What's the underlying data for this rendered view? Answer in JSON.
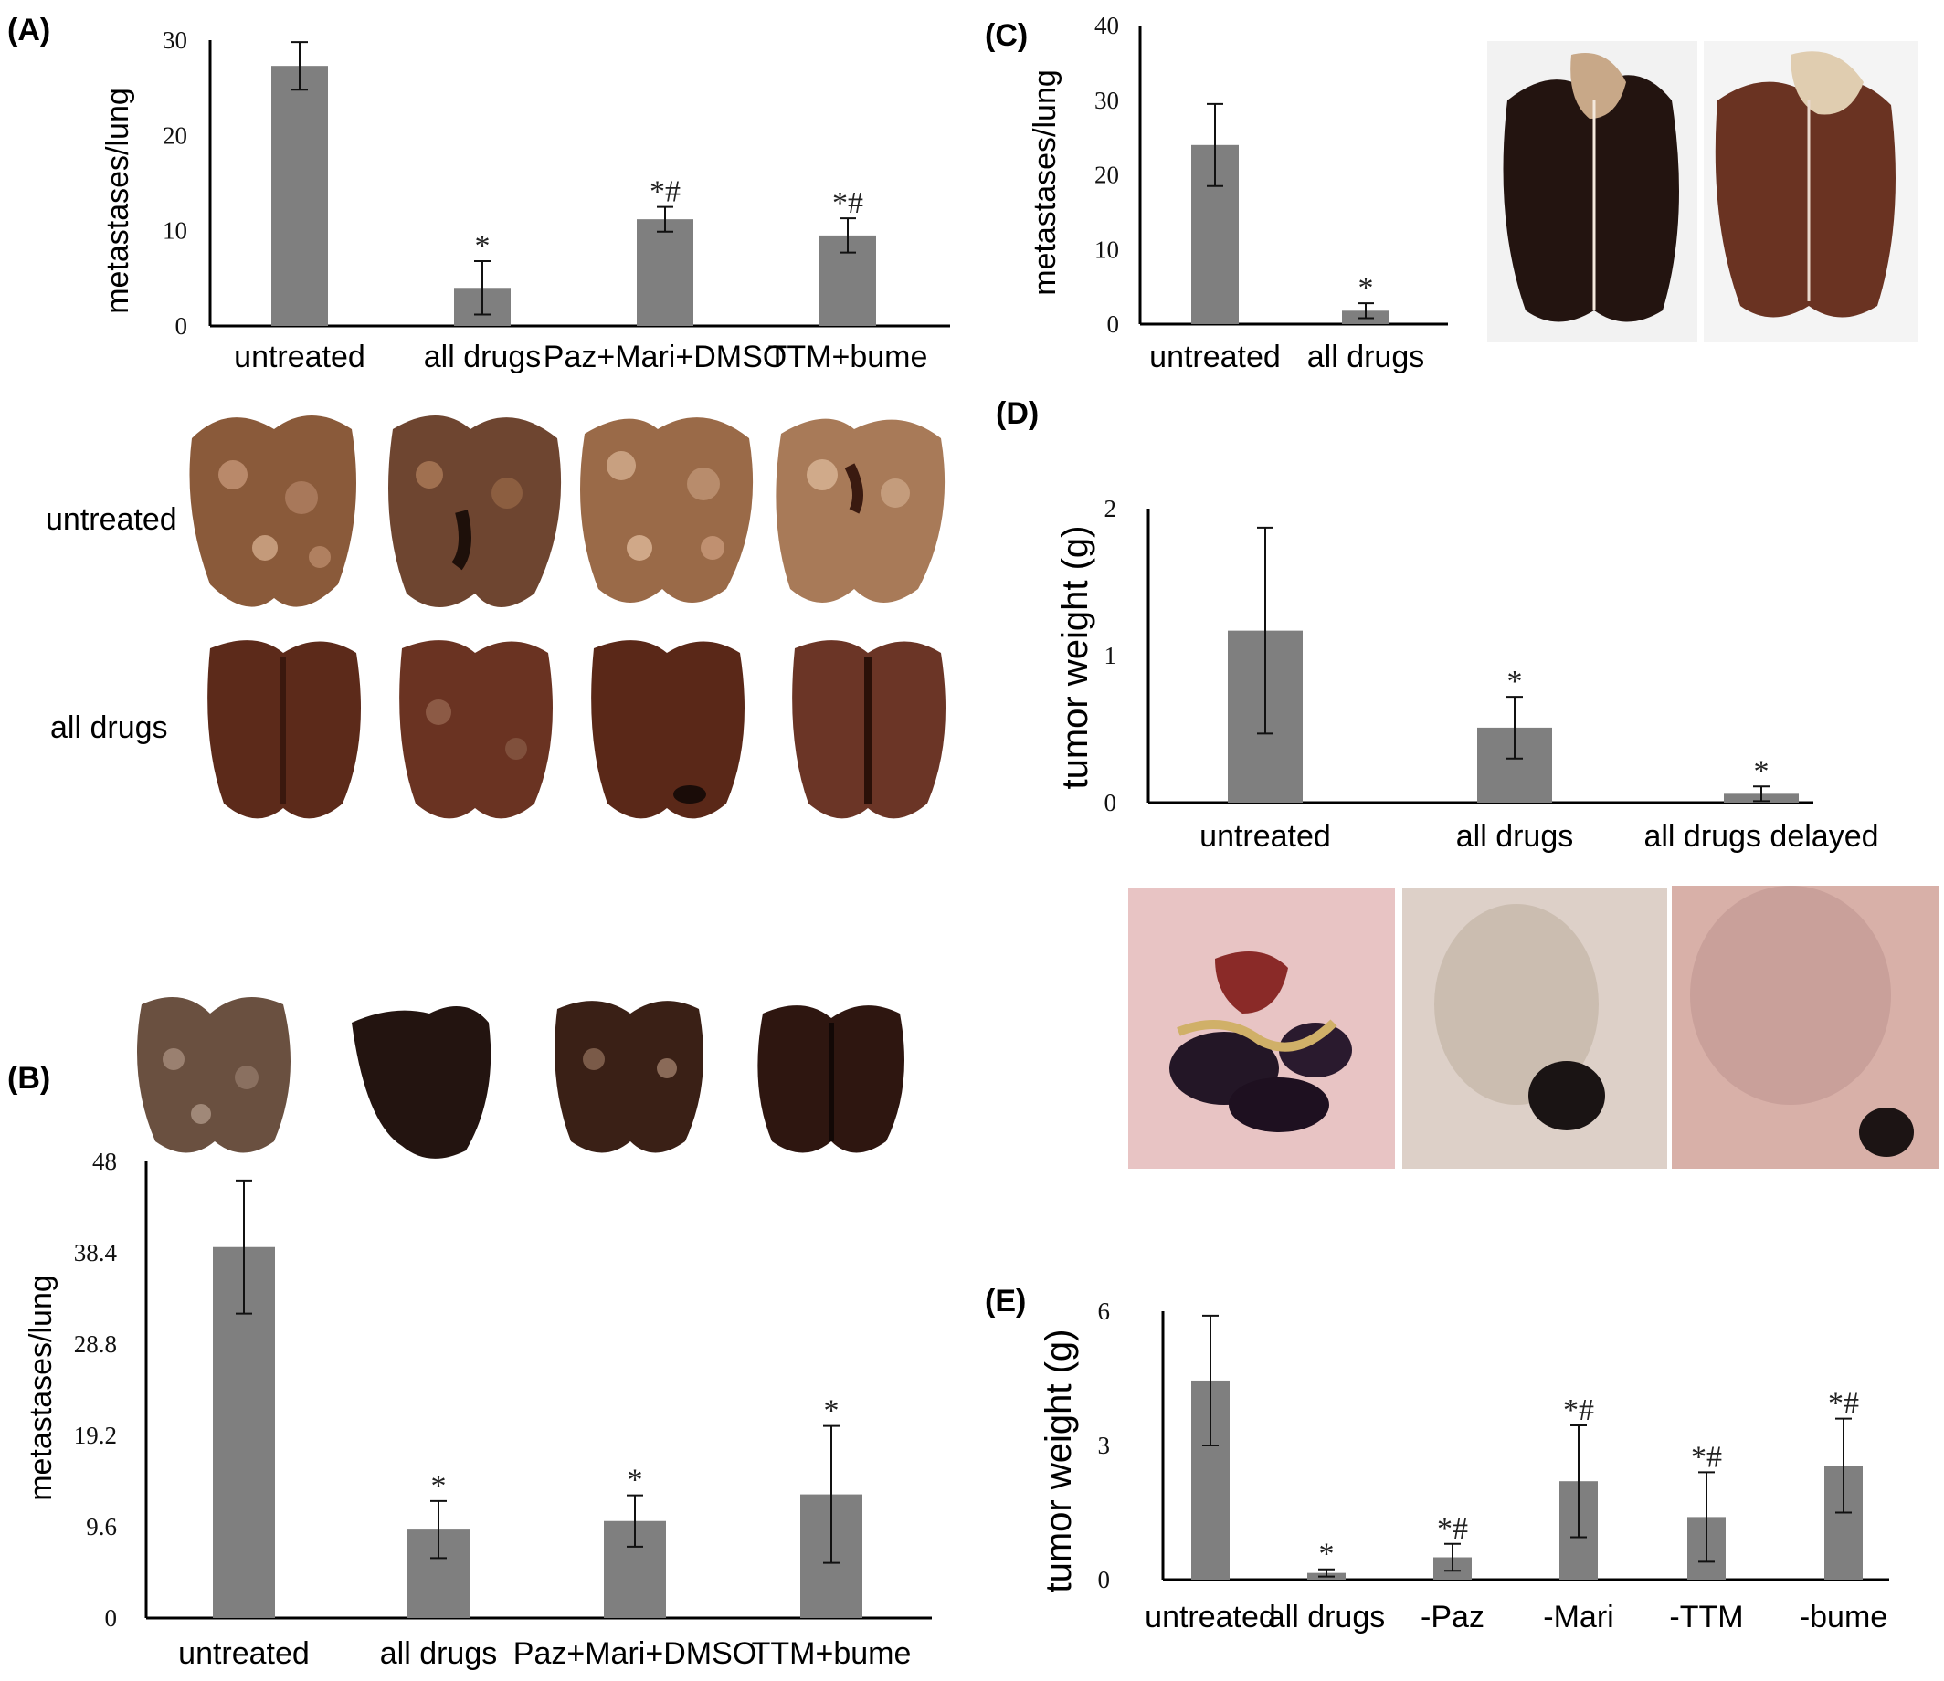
{
  "colors": {
    "bar": "#7f7f7f",
    "axis": "#000000",
    "lung_untreated": "#8a5a3a",
    "lung_treated": "#5c2a1a",
    "lung_black": "#231410",
    "tissue_pink": "#e8c4c4"
  },
  "panels": {
    "A": {
      "letter": "(A)",
      "photo_rows": [
        "untreated",
        "all drugs"
      ]
    },
    "B": {
      "letter": "(B)"
    },
    "C": {
      "letter": "(C)"
    },
    "D": {
      "letter": "(D)"
    },
    "E": {
      "letter": "(E)"
    }
  },
  "chart_data": [
    {
      "id": "A",
      "type": "bar",
      "ylabel": "metastases/lung",
      "categories": [
        "untreated",
        "all drugs",
        "Paz+Mari+DMSO",
        "TTM+bume"
      ],
      "values": [
        27.3,
        4.0,
        11.2,
        9.5
      ],
      "errors": [
        2.5,
        2.8,
        1.3,
        1.8
      ],
      "annotations": [
        "",
        "*",
        "*#",
        "*#"
      ],
      "yticks": [
        "0",
        "10",
        "20",
        "30"
      ],
      "ylim": [
        0,
        30
      ]
    },
    {
      "id": "B",
      "type": "bar",
      "ylabel": "metastases/lung",
      "categories": [
        "untreated",
        "all drugs",
        "Paz+Mari+DMSO",
        "TTM+bume"
      ],
      "values": [
        39.0,
        9.3,
        10.2,
        13.0
      ],
      "errors": [
        7.0,
        3.0,
        2.7,
        7.2
      ],
      "annotations": [
        "",
        "*",
        "*",
        "*"
      ],
      "yticks": [
        "0",
        "9.6",
        "19.2",
        "28.8",
        "38.4",
        "48"
      ],
      "ylim": [
        0,
        48
      ]
    },
    {
      "id": "C",
      "type": "bar",
      "ylabel": "metastases/lung",
      "categories": [
        "untreated",
        "all drugs"
      ],
      "values": [
        24.0,
        1.8
      ],
      "errors": [
        5.5,
        1.0
      ],
      "annotations": [
        "",
        "*"
      ],
      "yticks": [
        "0",
        "10",
        "20",
        "30",
        "40"
      ],
      "ylim": [
        0,
        40
      ]
    },
    {
      "id": "D",
      "type": "bar",
      "ylabel": "tumor weight (g)",
      "categories": [
        "untreated",
        "all drugs",
        "all drugs delayed"
      ],
      "values": [
        1.17,
        0.51,
        0.06
      ],
      "errors": [
        0.7,
        0.21,
        0.05
      ],
      "annotations": [
        "",
        "*",
        "*"
      ],
      "yticks": [
        "0",
        "1",
        "2"
      ],
      "ylim": [
        0,
        2
      ]
    },
    {
      "id": "E",
      "type": "bar",
      "ylabel": "tumor weight (g)",
      "categories": [
        "untreated",
        "all drugs",
        "-Paz",
        "-Mari",
        "-TTM",
        "-bume"
      ],
      "values": [
        4.45,
        0.15,
        0.5,
        2.2,
        1.4,
        2.55
      ],
      "errors": [
        1.45,
        0.08,
        0.3,
        1.25,
        1.0,
        1.05
      ],
      "annotations": [
        "",
        "*",
        "*#",
        "*#",
        "*#",
        "*#"
      ],
      "yticks": [
        "0",
        "3",
        "6"
      ],
      "ylim": [
        0,
        6
      ]
    }
  ]
}
